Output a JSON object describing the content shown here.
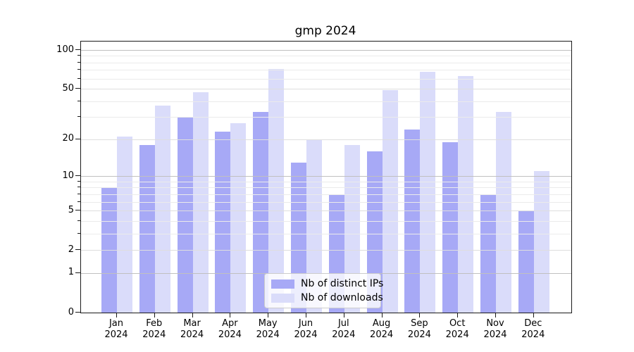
{
  "chart_data": {
    "type": "bar",
    "title": "gmp 2024",
    "categories": [
      "Jan",
      "Feb",
      "Mar",
      "Apr",
      "May",
      "Jun",
      "Jul",
      "Aug",
      "Sep",
      "Oct",
      "Nov",
      "Dec"
    ],
    "category_year": "2024",
    "series": [
      {
        "name": "Nb of distinct IPs",
        "color": "#a7a9f6",
        "values": [
          8,
          18,
          30,
          23,
          33,
          13,
          7,
          16,
          24,
          19,
          7,
          5
        ]
      },
      {
        "name": "Nb of downloads",
        "color": "#dadcfa",
        "values": [
          21,
          37,
          47,
          27,
          71,
          20,
          18,
          49,
          68,
          63,
          33,
          11
        ]
      }
    ],
    "xlabel": "",
    "ylabel": "",
    "y_axis": {
      "scale": "log1p",
      "tick_labels": [
        0,
        1,
        2,
        5,
        10,
        20,
        50,
        100
      ],
      "minor_ticks": [
        3,
        4,
        6,
        7,
        8,
        9,
        30,
        40,
        60,
        70,
        80,
        90
      ],
      "ylim": [
        0,
        100
      ]
    },
    "legend": {
      "position": "inside-bottom-center"
    },
    "grid": true,
    "colors": {
      "major_grid": "#c0c0c0",
      "labeled_grid": "#dedede",
      "minor_grid": "#ebebeb",
      "axis": "#1a1a1a"
    }
  }
}
